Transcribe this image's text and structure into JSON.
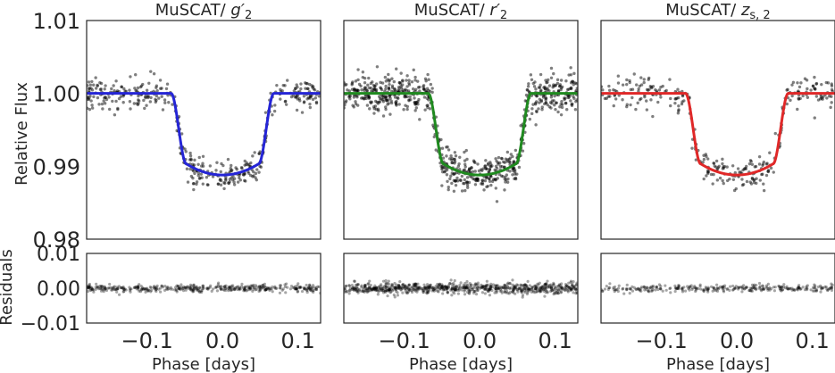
{
  "figure": {
    "ylabel_top": "Relative Flux",
    "ylabel_bottom": "Residuals",
    "xlabel": "Phase [days]"
  },
  "chart_data": {
    "type": "scatter",
    "panels": [
      {
        "title_prefix": "MuSCAT/ ",
        "title_math": "g′",
        "title_sub": "2",
        "model_color": "#2525d6",
        "n_points": 420,
        "noise": 0.001,
        "res_noise": 0.0011
      },
      {
        "title_prefix": "MuSCAT/ ",
        "title_math": "r′",
        "title_sub": "2",
        "model_color": "#1f8a1f",
        "n_points": 760,
        "noise": 0.0013,
        "res_noise": 0.0016
      },
      {
        "title_prefix": "MuSCAT/ ",
        "title_math": "z",
        "title_sub": "s, 2",
        "model_color": "#e02828",
        "n_points": 300,
        "noise": 0.0011,
        "res_noise": 0.0011
      }
    ],
    "model": {
      "baseline": 1.0,
      "depth": 0.0112,
      "ingress_start": -0.068,
      "ingress_end": -0.048,
      "egress_start": 0.048,
      "egress_end": 0.068,
      "limb_curvature": 0.25
    },
    "xlim": [
      -0.18,
      0.13
    ],
    "ylim_top": [
      0.98,
      1.01
    ],
    "ylim_bottom": [
      -0.01,
      0.01
    ],
    "xticks": [
      -0.1,
      0.0,
      0.1
    ],
    "xtick_labels": [
      "−0.1",
      "0.0",
      "0.1"
    ],
    "yticks_top": [
      0.98,
      0.99,
      1.0,
      1.01
    ],
    "ytick_labels_top": [
      "0.98",
      "0.99",
      "1.00",
      "1.01"
    ],
    "yticks_bottom": [
      -0.01,
      0.0,
      0.01
    ],
    "ytick_labels_bottom": [
      "−0.01",
      "0.00",
      "0.01"
    ],
    "point_color": "#000000",
    "grid": false
  }
}
